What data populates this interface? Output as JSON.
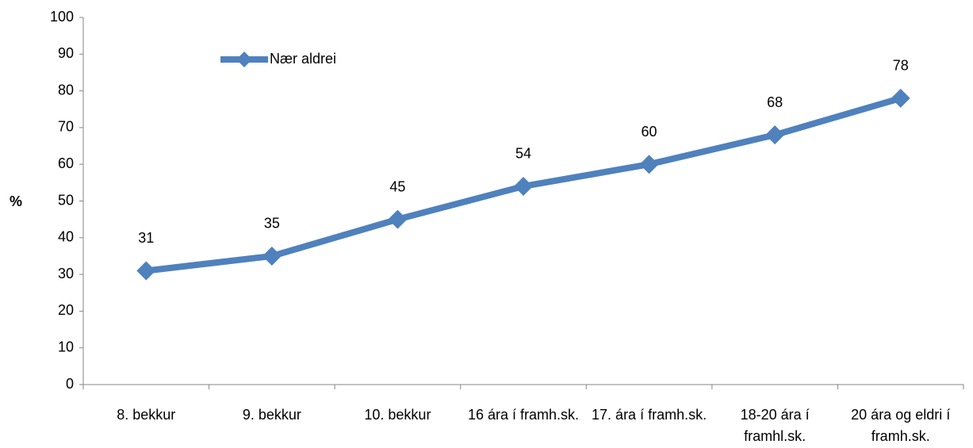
{
  "chart_data": {
    "type": "line",
    "y_label": "%",
    "categories": [
      "8. bekkur",
      "9. bekkur",
      "10. bekkur",
      "16 ára í framh.sk.",
      "17. ára í framh.sk.",
      "18-20 ára  í framhl.sk.",
      "20 ára og eldri í framh.sk."
    ],
    "series": [
      {
        "name": "Nær aldrei",
        "color": "#4f81bd",
        "values": [
          31,
          35,
          45,
          54,
          60,
          68,
          78
        ]
      }
    ],
    "ylim": [
      0,
      100
    ],
    "yticks": [
      0,
      10,
      20,
      30,
      40,
      50,
      60,
      70,
      80,
      90,
      100
    ],
    "grid": false,
    "legend": "top-left",
    "data_labels": true
  }
}
